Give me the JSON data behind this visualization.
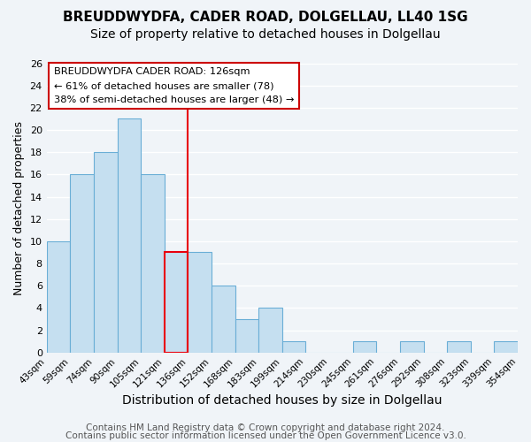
{
  "title": "BREUDDWYDFA, CADER ROAD, DOLGELLAU, LL40 1SG",
  "subtitle": "Size of property relative to detached houses in Dolgellau",
  "xlabel": "Distribution of detached houses by size in Dolgellau",
  "ylabel": "Number of detached properties",
  "bin_labels": [
    "43sqm",
    "59sqm",
    "74sqm",
    "90sqm",
    "105sqm",
    "121sqm",
    "136sqm",
    "152sqm",
    "168sqm",
    "183sqm",
    "199sqm",
    "214sqm",
    "230sqm",
    "245sqm",
    "261sqm",
    "276sqm",
    "292sqm",
    "308sqm",
    "323sqm",
    "339sqm",
    "354sqm"
  ],
  "bar_heights": [
    10,
    16,
    18,
    21,
    16,
    9,
    9,
    6,
    3,
    4,
    1,
    0,
    0,
    1,
    0,
    1,
    0,
    1,
    0,
    1
  ],
  "bar_color": "#c5dff0",
  "bar_edge_color": "#6aaed6",
  "highlight_bar_index": 5,
  "highlight_bar_edge_color": "#e8000d",
  "vline_color": "#e8000d",
  "ylim": [
    0,
    26
  ],
  "yticks": [
    0,
    2,
    4,
    6,
    8,
    10,
    12,
    14,
    16,
    18,
    20,
    22,
    24,
    26
  ],
  "annotation_title": "BREUDDWYDFA CADER ROAD: 126sqm",
  "annotation_line1": "← 61% of detached houses are smaller (78)",
  "annotation_line2": "38% of semi-detached houses are larger (48) →",
  "footer1": "Contains HM Land Registry data © Crown copyright and database right 2024.",
  "footer2": "Contains public sector information licensed under the Open Government Licence v3.0.",
  "background_color": "#f0f4f8",
  "grid_color": "#ffffff",
  "title_fontsize": 11,
  "subtitle_fontsize": 10,
  "xlabel_fontsize": 10,
  "ylabel_fontsize": 9,
  "footer_fontsize": 7.5
}
